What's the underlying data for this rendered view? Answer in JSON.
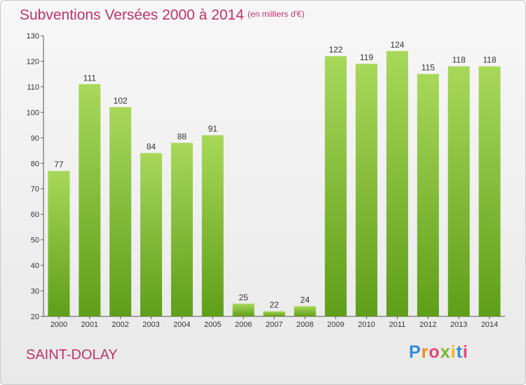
{
  "header": {
    "title": "Subventions Versées 2000 à 2014",
    "subtitle": "(en milliers d'€)"
  },
  "footer": {
    "location": "SAINT-DOLAY",
    "logo": {
      "letters": [
        "P",
        "r",
        "o",
        "x",
        "i",
        "t",
        "i"
      ],
      "colors": [
        "#2e8fd6",
        "#f08c1c",
        "#e4427d",
        "#7ab82a",
        "#f6b21b",
        "#2e8fd6",
        "#e4427d"
      ]
    }
  },
  "colors": {
    "bar_light": "#a8d85a",
    "bar_dark": "#5f9e19",
    "text_accent": "#c0336a"
  },
  "chart_data": {
    "type": "bar",
    "title": "Subventions Versées 2000 à 2014",
    "subtitle": "(en milliers d'€)",
    "categories": [
      "2000",
      "2001",
      "2002",
      "2003",
      "2004",
      "2005",
      "2006",
      "2007",
      "2008",
      "2009",
      "2010",
      "2011",
      "2012",
      "2013",
      "2014"
    ],
    "values": [
      77,
      111,
      102,
      84,
      88,
      91,
      25,
      22,
      24,
      122,
      119,
      124,
      115,
      118,
      118
    ],
    "ylim": [
      20,
      130
    ],
    "yticks": [
      20,
      30,
      40,
      50,
      60,
      70,
      80,
      90,
      100,
      110,
      120,
      130
    ],
    "grid": false,
    "legend": "none"
  }
}
